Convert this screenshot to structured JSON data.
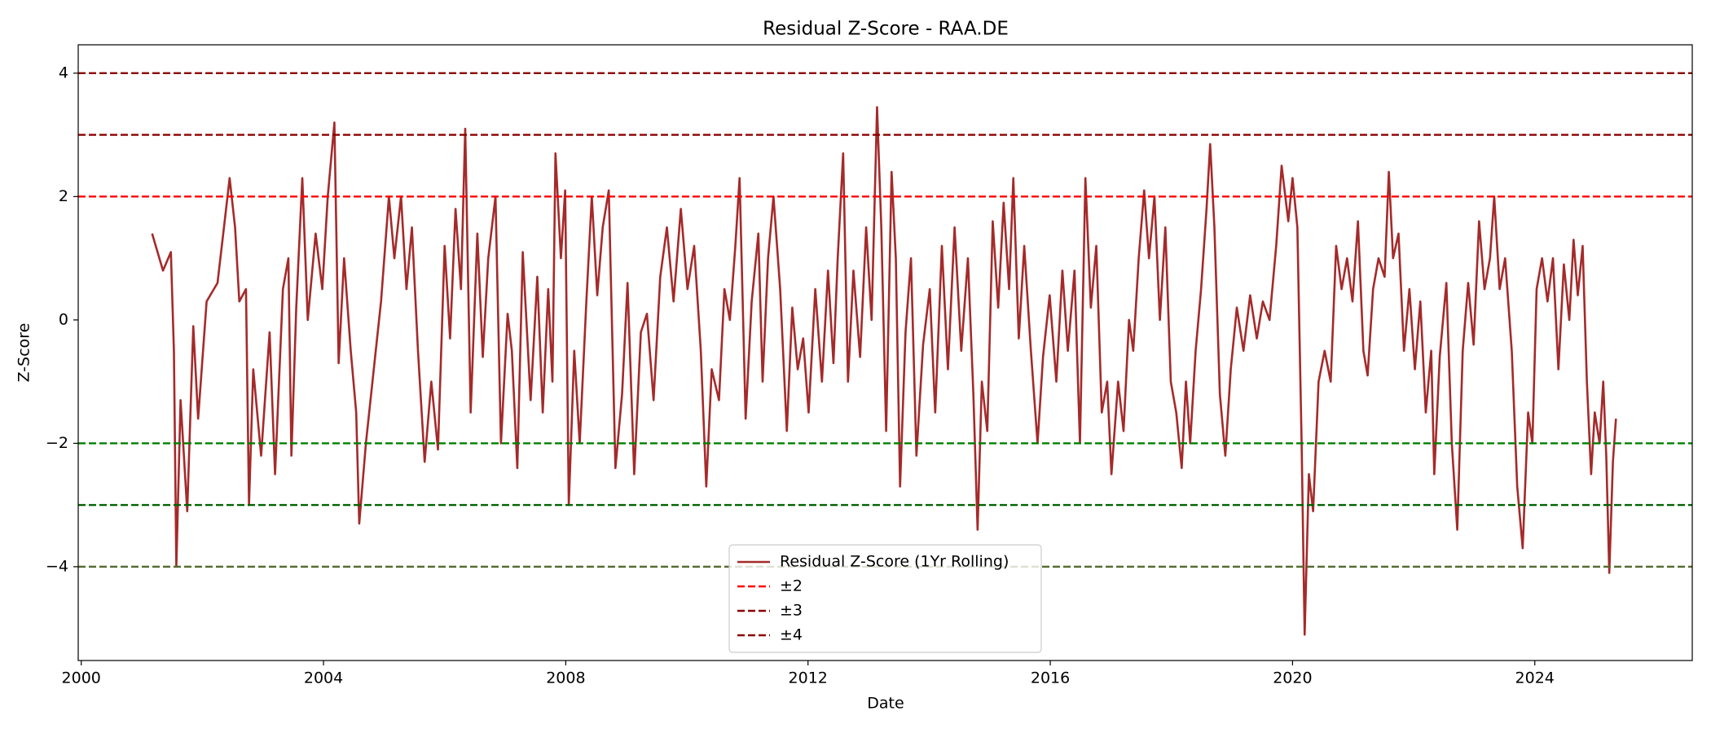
{
  "chart_data": {
    "type": "line",
    "title": "Residual Z-Score - RAA.DE",
    "xlabel": "Date",
    "ylabel": "Z-Score",
    "xlim": [
      1999.95,
      2026.6
    ],
    "xticks": [
      2000,
      2004,
      2008,
      2012,
      2016,
      2020,
      2024
    ],
    "ylim": [
      -5.52,
      4.46
    ],
    "yticks": [
      {
        "value": -4,
        "label": "−4"
      },
      {
        "value": -2,
        "label": "−2"
      },
      0,
      2,
      4
    ],
    "legend": "lower center",
    "x": [
      2001.17,
      2001.35,
      2001.48,
      2001.53,
      2001.57,
      2001.64,
      2001.75,
      2001.85,
      2001.93,
      2002.07,
      2002.25,
      2002.38,
      2002.45,
      2002.54,
      2002.61,
      2002.72,
      2002.77,
      2002.84,
      2002.97,
      2003.11,
      2003.2,
      2003.33,
      2003.42,
      2003.47,
      2003.55,
      2003.65,
      2003.74,
      2003.87,
      2003.98,
      2004.07,
      2004.18,
      2004.25,
      2004.34,
      2004.45,
      2004.54,
      2004.59,
      2004.7,
      2004.83,
      2004.95,
      2005.08,
      2005.17,
      2005.28,
      2005.37,
      2005.46,
      2005.56,
      2005.67,
      2005.78,
      2005.89,
      2006.0,
      2006.09,
      2006.18,
      2006.27,
      2006.34,
      2006.43,
      2006.54,
      2006.63,
      2006.72,
      2006.84,
      2006.93,
      2007.04,
      2007.11,
      2007.2,
      2007.29,
      2007.42,
      2007.53,
      2007.62,
      2007.71,
      2007.78,
      2007.83,
      2007.92,
      2007.99,
      2008.05,
      2008.14,
      2008.23,
      2008.34,
      2008.43,
      2008.52,
      2008.61,
      2008.71,
      2008.82,
      2008.93,
      2009.02,
      2009.13,
      2009.24,
      2009.34,
      2009.45,
      2009.56,
      2009.67,
      2009.78,
      2009.9,
      2010.01,
      2010.12,
      2010.23,
      2010.32,
      2010.41,
      2010.53,
      2010.62,
      2010.71,
      2010.8,
      2010.87,
      2010.97,
      2011.07,
      2011.18,
      2011.25,
      2011.34,
      2011.43,
      2011.54,
      2011.65,
      2011.74,
      2011.83,
      2011.92,
      2012.01,
      2012.12,
      2012.23,
      2012.33,
      2012.42,
      2012.49,
      2012.58,
      2012.66,
      2012.75,
      2012.86,
      2012.96,
      2013.05,
      2013.14,
      2013.21,
      2013.29,
      2013.38,
      2013.45,
      2013.52,
      2013.61,
      2013.7,
      2013.79,
      2013.9,
      2014.01,
      2014.1,
      2014.21,
      2014.31,
      2014.42,
      2014.53,
      2014.64,
      2014.73,
      2014.8,
      2014.87,
      2014.96,
      2015.05,
      2015.14,
      2015.23,
      2015.32,
      2015.39,
      2015.48,
      2015.57,
      2015.68,
      2015.79,
      2015.88,
      2015.99,
      2016.1,
      2016.2,
      2016.29,
      2016.4,
      2016.49,
      2016.58,
      2016.67,
      2016.76,
      2016.85,
      2016.94,
      2017.01,
      2017.12,
      2017.21,
      2017.3,
      2017.37,
      2017.46,
      2017.55,
      2017.63,
      2017.72,
      2017.81,
      2017.9,
      2017.99,
      2018.08,
      2018.17,
      2018.24,
      2018.31,
      2018.4,
      2018.49,
      2018.58,
      2018.64,
      2018.71,
      2018.8,
      2018.89,
      2018.98,
      2019.08,
      2019.19,
      2019.3,
      2019.41,
      2019.51,
      2019.62,
      2019.73,
      2019.82,
      2019.93,
      2020.0,
      2020.08,
      2020.15,
      2020.2,
      2020.27,
      2020.34,
      2020.43,
      2020.53,
      2020.63,
      2020.72,
      2020.81,
      2020.9,
      2020.99,
      2021.08,
      2021.17,
      2021.24,
      2021.33,
      2021.42,
      2021.52,
      2021.59,
      2021.66,
      2021.75,
      2021.84,
      2021.93,
      2022.02,
      2022.11,
      2022.2,
      2022.29,
      2022.34,
      2022.43,
      2022.54,
      2022.63,
      2022.72,
      2022.81,
      2022.9,
      2022.99,
      2023.08,
      2023.17,
      2023.26,
      2023.33,
      2023.42,
      2023.51,
      2023.62,
      2023.71,
      2023.8,
      2023.89,
      2023.96,
      2024.03,
      2024.12,
      2024.21,
      2024.3,
      2024.39,
      2024.48,
      2024.57,
      2024.64,
      2024.71,
      2024.79,
      2024.86,
      2024.93,
      2024.99,
      2025.07,
      2025.13,
      2025.18,
      2025.23,
      2025.29,
      2025.34
    ],
    "series": [
      {
        "name": "Residual Z-Score (1Yr Rolling)",
        "color": "#a52a2a",
        "values": [
          1.4,
          0.8,
          1.1,
          -0.5,
          -4.0,
          -1.3,
          -3.1,
          -0.1,
          -1.6,
          0.3,
          0.6,
          1.7,
          2.3,
          1.5,
          0.3,
          0.5,
          -3.0,
          -0.8,
          -2.2,
          -0.2,
          -2.5,
          0.5,
          1.0,
          -2.2,
          0.2,
          2.3,
          0.0,
          1.4,
          0.5,
          2.0,
          3.2,
          -0.7,
          1.0,
          -0.5,
          -1.5,
          -3.3,
          -2.0,
          -0.8,
          0.3,
          2.0,
          1.0,
          2.0,
          0.5,
          1.5,
          -0.5,
          -2.3,
          -1.0,
          -2.1,
          1.2,
          -0.3,
          1.8,
          0.5,
          3.1,
          -1.5,
          1.4,
          -0.6,
          1.0,
          2.0,
          -2.0,
          0.1,
          -0.5,
          -2.4,
          1.1,
          -1.3,
          0.7,
          -1.5,
          0.5,
          -1.0,
          2.7,
          1.0,
          2.1,
          -3.0,
          -0.5,
          -2.0,
          0.3,
          2.0,
          0.4,
          1.5,
          2.1,
          -2.4,
          -1.2,
          0.6,
          -2.5,
          -0.2,
          0.1,
          -1.3,
          0.7,
          1.5,
          0.3,
          1.8,
          0.5,
          1.2,
          -0.5,
          -2.7,
          -0.8,
          -1.3,
          0.5,
          0.0,
          1.2,
          2.3,
          -1.6,
          0.3,
          1.4,
          -1.0,
          1.0,
          2.0,
          0.5,
          -1.8,
          0.2,
          -0.8,
          -0.3,
          -1.5,
          0.5,
          -1.0,
          0.8,
          -0.7,
          1.0,
          2.7,
          -1.0,
          0.8,
          -0.6,
          1.5,
          0.0,
          3.45,
          1.5,
          -1.8,
          2.4,
          1.0,
          -2.7,
          -0.2,
          1.0,
          -2.2,
          -0.4,
          0.5,
          -1.5,
          1.2,
          -0.8,
          1.5,
          -0.5,
          1.0,
          -1.2,
          -3.4,
          -1.0,
          -1.8,
          1.6,
          0.2,
          1.9,
          0.5,
          2.3,
          -0.3,
          1.2,
          -0.5,
          -2.0,
          -0.6,
          0.4,
          -1.0,
          0.8,
          -0.5,
          0.8,
          -2.0,
          2.3,
          0.2,
          1.2,
          -1.5,
          -1.0,
          -2.5,
          -1.0,
          -1.8,
          0.0,
          -0.5,
          1.0,
          2.1,
          1.0,
          2.0,
          0.0,
          1.5,
          -1.0,
          -1.5,
          -2.4,
          -1.0,
          -2.0,
          -0.5,
          0.5,
          1.8,
          2.85,
          1.5,
          -1.2,
          -2.2,
          -0.8,
          0.2,
          -0.5,
          0.4,
          -0.3,
          0.3,
          0.0,
          1.2,
          2.5,
          1.6,
          2.3,
          1.5,
          -2.0,
          -5.1,
          -2.5,
          -3.1,
          -1.0,
          -0.5,
          -1.0,
          1.2,
          0.5,
          1.0,
          0.3,
          1.6,
          -0.5,
          -0.9,
          0.5,
          1.0,
          0.7,
          2.4,
          1.0,
          1.4,
          -0.5,
          0.5,
          -0.8,
          0.3,
          -1.5,
          -0.5,
          -2.5,
          -0.6,
          0.6,
          -2.0,
          -3.4,
          -0.5,
          0.6,
          -0.4,
          1.6,
          0.5,
          1.0,
          2.0,
          0.5,
          1.0,
          -0.5,
          -2.7,
          -3.7,
          -1.5,
          -2.0,
          0.5,
          1.0,
          0.3,
          1.0,
          -0.8,
          0.9,
          0.0,
          1.3,
          0.4,
          1.2,
          -1.0,
          -2.5,
          -1.5,
          -2.0,
          -1.0,
          -2.2,
          -4.1,
          -2.3,
          -1.6
        ]
      }
    ],
    "reference_lines": [
      {
        "name": "±2",
        "color": "red",
        "levels": [
          2,
          -2
        ],
        "level_colors": [
          "red",
          "green"
        ]
      },
      {
        "name": "±3",
        "color": "darkred",
        "levels": [
          3,
          -3
        ],
        "level_colors": [
          "darkred",
          "darkgreen"
        ]
      },
      {
        "name": "±4",
        "color": "darkred",
        "levels": [
          4,
          -4
        ],
        "level_colors": [
          "darkred",
          "darkolivegreen"
        ]
      }
    ]
  }
}
